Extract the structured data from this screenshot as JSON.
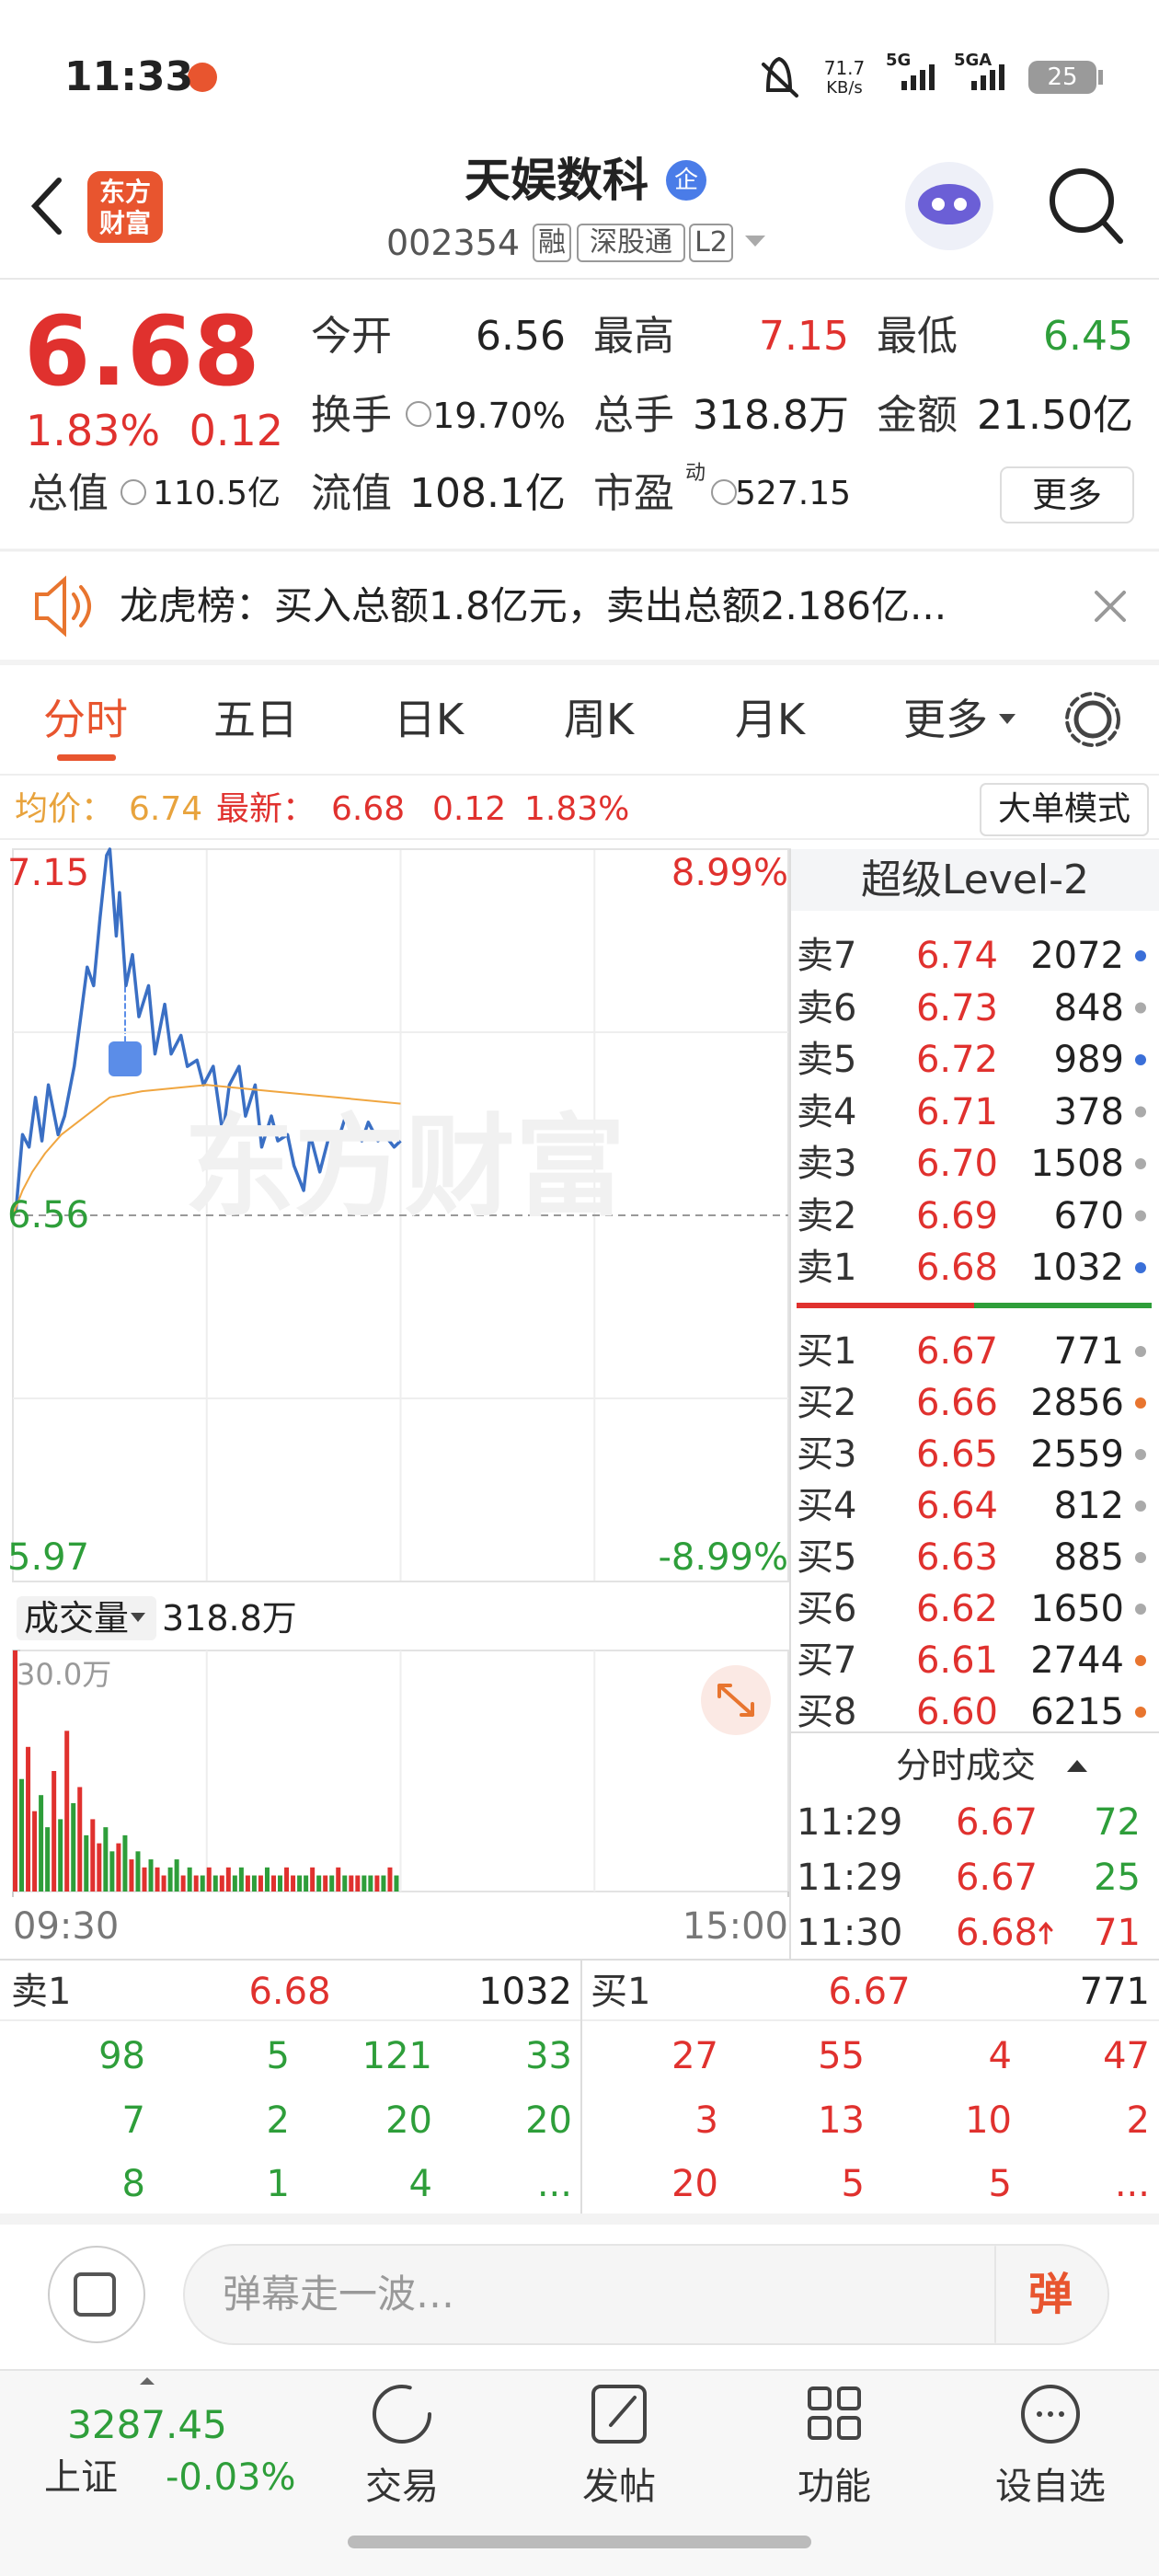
{
  "status_bar": {
    "time": "11:33",
    "net_speed": "71.7",
    "net_unit": "KB/s",
    "network_1": "5G",
    "network_2": "5GA",
    "battery": "25"
  },
  "header": {
    "logo": [
      "东方",
      "财富"
    ],
    "title": "天娱数科",
    "badge": "企",
    "code": "002354",
    "tags": [
      "融",
      "深股通",
      "L2"
    ]
  },
  "quote": {
    "price": "6.68",
    "change_pct": "1.83%",
    "change": "0.12",
    "fields": [
      {
        "label": "今开",
        "value": "6.56"
      },
      {
        "label": "最高",
        "value": "7.15"
      },
      {
        "label": "最低",
        "value": "6.45"
      },
      {
        "label": "换手",
        "value": "19.70%"
      },
      {
        "label": "总手",
        "value": "318.8万"
      },
      {
        "label": "金额",
        "value": "21.50亿"
      },
      {
        "label": "总值",
        "value": "110.5亿"
      },
      {
        "label": "流值",
        "value": "108.1亿"
      },
      {
        "label": "市盈",
        "sup": "动",
        "value": "527.15"
      }
    ],
    "more": "更多"
  },
  "banner": {
    "text": "龙虎榜：买入总额1.8亿元，卖出总额2.186亿..."
  },
  "tabs": [
    "分时",
    "五日",
    "日K",
    "周K",
    "月K",
    "更多"
  ],
  "info_bar": {
    "avg_label": "均价：",
    "avg": "6.74",
    "latest_label": "最新：",
    "latest": "6.68",
    "change": "0.12",
    "change_pct": "1.83%",
    "mode": "大单模式"
  },
  "watermark": "东方财富",
  "chart_data": [
    {
      "type": "line",
      "xlim": [
        0,
        240
      ],
      "ylim": [
        5.97,
        7.15
      ],
      "yticks": [
        7.15,
        6.56,
        5.97
      ],
      "y2lim": [
        -8.99,
        8.99
      ],
      "y2ticks": [
        {
          "value": 8.99,
          "label": "8.99%"
        },
        {
          "value": -8.99,
          "label": "-8.99%"
        }
      ],
      "series": [
        {
          "color": "#3a6fc4",
          "x": [
            0,
            1,
            3,
            5,
            7,
            9,
            11,
            14,
            16,
            19,
            21,
            23,
            25,
            27,
            29,
            30,
            32,
            33,
            35,
            37,
            39,
            42,
            44,
            47,
            49,
            52,
            54,
            57,
            59,
            62,
            65,
            67,
            70,
            72,
            75,
            77,
            80,
            82,
            85,
            87,
            90,
            92,
            95,
            98,
            100,
            103,
            105,
            108,
            110,
            113,
            115,
            118,
            120
          ],
          "values": [
            6.56,
            6.57,
            6.69,
            6.67,
            6.75,
            6.68,
            6.77,
            6.69,
            6.72,
            6.8,
            6.88,
            6.96,
            6.93,
            7.04,
            7.14,
            7.15,
            7.01,
            7.08,
            6.93,
            6.98,
            6.88,
            6.93,
            6.82,
            6.9,
            6.82,
            6.85,
            6.8,
            6.81,
            6.77,
            6.8,
            6.69,
            6.77,
            6.8,
            6.72,
            6.77,
            6.67,
            6.72,
            6.68,
            6.69,
            6.64,
            6.6,
            6.69,
            6.63,
            6.69,
            6.67,
            6.72,
            6.71,
            6.68,
            6.71,
            6.68,
            6.69,
            6.67,
            6.68
          ]
        },
        {
          "color": "#f0a640",
          "x": [
            0,
            3,
            6,
            10,
            15,
            20,
            25,
            30,
            40,
            60,
            80,
            100,
            120
          ],
          "values": [
            6.56,
            6.6,
            6.63,
            6.66,
            6.69,
            6.71,
            6.73,
            6.75,
            6.76,
            6.77,
            6.76,
            6.75,
            6.74
          ]
        }
      ]
    },
    {
      "type": "bar",
      "title": "成交量",
      "total": "318.8万",
      "xlim": [
        0,
        240
      ],
      "ylim": [
        0,
        30
      ],
      "yticks": [
        {
          "value": 30,
          "label": "30.0万"
        }
      ],
      "xticks": [
        {
          "value": 0,
          "label": "09:30"
        },
        {
          "value": 240,
          "label": "15:00"
        }
      ],
      "x": [
        0,
        2,
        4,
        6,
        8,
        10,
        12,
        14,
        16,
        18,
        20,
        22,
        24,
        26,
        28,
        30,
        32,
        34,
        36,
        38,
        40,
        42,
        44,
        46,
        48,
        50,
        52,
        54,
        56,
        58,
        60,
        62,
        64,
        66,
        68,
        70,
        72,
        74,
        76,
        78,
        80,
        82,
        84,
        86,
        88,
        90,
        92,
        94,
        96,
        98,
        100,
        102,
        104,
        106,
        108,
        110,
        112,
        114,
        116,
        118
      ],
      "values": [
        30,
        14,
        18,
        10,
        12,
        8,
        15,
        9,
        20,
        11,
        13,
        7,
        9,
        6,
        8,
        5,
        6,
        7,
        4,
        5,
        3,
        4,
        3,
        2,
        3,
        4,
        2,
        3,
        2,
        2,
        3,
        2,
        2,
        3,
        2,
        3,
        2,
        2,
        2,
        3,
        2,
        2,
        3,
        2,
        2,
        2,
        3,
        2,
        2,
        2,
        3,
        2,
        2,
        2,
        2,
        2,
        2,
        2,
        3,
        2
      ],
      "colors": [
        "#e0312e",
        "#2e9e3a",
        "#e0312e",
        "#e0312e",
        "#2e9e3a",
        "#2e9e3a",
        "#e0312e",
        "#2e9e3a",
        "#e0312e",
        "#2e9e3a",
        "#e0312e",
        "#2e9e3a",
        "#e0312e",
        "#e0312e",
        "#2e9e3a",
        "#2e9e3a",
        "#e0312e",
        "#2e9e3a",
        "#e0312e",
        "#2e9e3a",
        "#e0312e",
        "#2e9e3a",
        "#e0312e",
        "#e0312e",
        "#2e9e3a",
        "#2e9e3a",
        "#e0312e",
        "#2e9e3a",
        "#e0312e",
        "#2e9e3a",
        "#e0312e",
        "#2e9e3a",
        "#e0312e",
        "#e0312e",
        "#2e9e3a",
        "#2e9e3a",
        "#e0312e",
        "#2e9e3a",
        "#e0312e",
        "#2e9e3a",
        "#e0312e",
        "#2e9e3a",
        "#e0312e",
        "#e0312e",
        "#2e9e3a",
        "#2e9e3a",
        "#e0312e",
        "#2e9e3a",
        "#e0312e",
        "#2e9e3a",
        "#e0312e",
        "#2e9e3a",
        "#e0312e",
        "#e0312e",
        "#2e9e3a",
        "#2e9e3a",
        "#e0312e",
        "#2e9e3a",
        "#e0312e",
        "#2e9e3a"
      ]
    }
  ],
  "order_book": {
    "title": "超级Level-2",
    "asks": [
      {
        "label": "卖7",
        "price": "6.74",
        "volume": "2072",
        "dot": "#3a6fd8"
      },
      {
        "label": "卖6",
        "price": "6.73",
        "volume": "848",
        "dot": "#aaaaaa"
      },
      {
        "label": "卖5",
        "price": "6.72",
        "volume": "989",
        "dot": "#3a6fd8"
      },
      {
        "label": "卖4",
        "price": "6.71",
        "volume": "378",
        "dot": "#aaaaaa"
      },
      {
        "label": "卖3",
        "price": "6.70",
        "volume": "1508",
        "dot": "#aaaaaa"
      },
      {
        "label": "卖2",
        "price": "6.69",
        "volume": "670",
        "dot": "#aaaaaa"
      },
      {
        "label": "卖1",
        "price": "6.68",
        "volume": "1032",
        "dot": "#3a6fd8"
      }
    ],
    "bids": [
      {
        "label": "买1",
        "price": "6.67",
        "volume": "771",
        "dot": "#aaaaaa"
      },
      {
        "label": "买2",
        "price": "6.66",
        "volume": "2856",
        "dot": "#e8752f"
      },
      {
        "label": "买3",
        "price": "6.65",
        "volume": "2559",
        "dot": "#aaaaaa"
      },
      {
        "label": "买4",
        "price": "6.64",
        "volume": "812",
        "dot": "#aaaaaa"
      },
      {
        "label": "买5",
        "price": "6.63",
        "volume": "885",
        "dot": "#aaaaaa"
      },
      {
        "label": "买6",
        "price": "6.62",
        "volume": "1650",
        "dot": "#aaaaaa"
      },
      {
        "label": "买7",
        "price": "6.61",
        "volume": "2744",
        "dot": "#e8752f"
      },
      {
        "label": "买8",
        "price": "6.60",
        "volume": "6215",
        "dot": "#e8752f"
      }
    ]
  },
  "trades": {
    "title": "分时成交",
    "rows": [
      {
        "time": "11:29",
        "price": "6.67",
        "volume": "72"
      },
      {
        "time": "11:29",
        "price": "6.67",
        "volume": "25"
      },
      {
        "time": "11:30",
        "price": "6.68",
        "volume": "71"
      }
    ]
  },
  "depth": {
    "ask": {
      "label": "卖1",
      "price": "6.68",
      "volume": "1032",
      "orders": [
        [
          "98",
          "5",
          "121",
          "33"
        ],
        [
          "7",
          "2",
          "20",
          "20"
        ],
        [
          "8",
          "1",
          "4",
          "..."
        ]
      ]
    },
    "bid": {
      "label": "买1",
      "price": "6.67",
      "volume": "771",
      "orders": [
        [
          "27",
          "55",
          "4",
          "47"
        ],
        [
          "3",
          "13",
          "10",
          "2"
        ],
        [
          "20",
          "5",
          "5",
          "..."
        ]
      ]
    }
  },
  "comment_bar": {
    "placeholder": "弹幕走一波…",
    "button": "弹"
  },
  "nav": {
    "index_value": "3287.45",
    "index_name": "上证",
    "index_change": "-0.03%",
    "items": [
      "交易",
      "发帖",
      "功能",
      "设自选"
    ]
  }
}
